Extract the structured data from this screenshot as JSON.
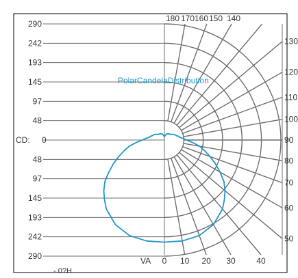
{
  "colors": {
    "grid": "#6d6d6d",
    "frame": "#000000",
    "curve": "#1e96c8",
    "title": "#1e96c8",
    "text": "#333333",
    "background": "#ffffff"
  },
  "chart_data": {
    "type": "polar-candela",
    "title": "PolarCandelaDistribution",
    "cd_label": "CD:",
    "va_label": "VA",
    "legend_text": "- 0?H",
    "cd_ticks_top": [
      "290",
      "242",
      "193",
      "145",
      "97",
      "48"
    ],
    "cd_zero": "0",
    "cd_ticks_bottom": [
      "48",
      "97",
      "145",
      "193",
      "242",
      "290"
    ],
    "cd_max": 290,
    "ring_step": 48.33,
    "spoke_step_deg": 10,
    "angle_labels_top": [
      "180",
      "170",
      "160",
      "150",
      "140"
    ],
    "angle_labels_right": [
      "130",
      "120",
      "110",
      "100",
      "90",
      "80",
      "70",
      "60",
      "50"
    ],
    "angle_labels_bottom": [
      "0",
      "10",
      "20",
      "30",
      "40"
    ],
    "series": [
      {
        "unit": "cd",
        "angles_deg": [
          0,
          10,
          20,
          30,
          40,
          45,
          50,
          55,
          60,
          65,
          70,
          75,
          80,
          85,
          90,
          95,
          100,
          105,
          110,
          115,
          120,
          125,
          130,
          135,
          140,
          150,
          160,
          170,
          180
        ],
        "values": [
          255,
          256,
          254,
          244,
          225,
          211,
          197,
          181,
          160,
          140,
          121,
          104,
          89,
          70,
          55,
          46,
          39,
          36,
          32,
          30,
          28,
          25,
          22,
          20,
          20,
          18,
          16,
          12,
          8
        ]
      }
    ]
  }
}
